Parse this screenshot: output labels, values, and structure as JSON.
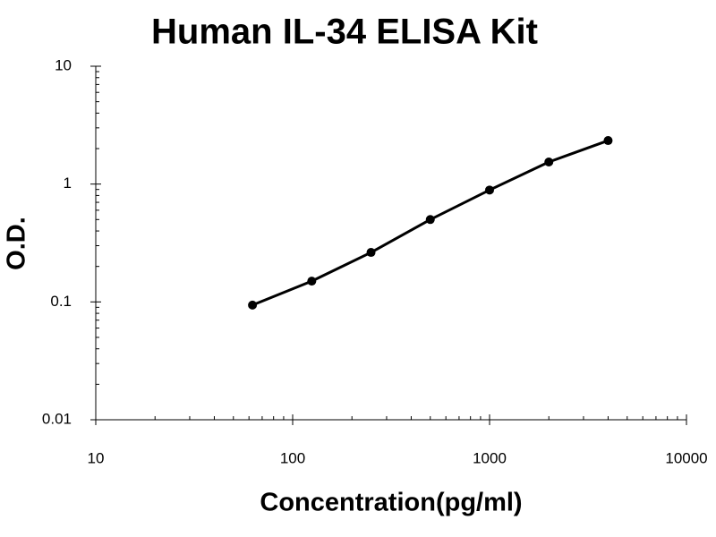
{
  "chart_data": {
    "type": "scatter-line",
    "title": "Human IL-34 ELISA Kit",
    "x_label": "Concentration(pg/ml)",
    "y_label": "O.D.",
    "x": [
      62.5,
      125,
      250,
      500,
      1000,
      2000,
      4000
    ],
    "series": [
      {
        "color": "#000000",
        "values": [
          0.094,
          0.15,
          0.263,
          0.5,
          0.89,
          1.54,
          2.34
        ]
      }
    ],
    "xlim": [
      10,
      10000
    ],
    "ylim": [
      0.01,
      10
    ],
    "xticks": [
      10,
      100,
      1000,
      10000
    ],
    "yticks": [
      0.01,
      0.1,
      1,
      10
    ],
    "xscale": "log",
    "yscale": "log",
    "grid": false
  }
}
